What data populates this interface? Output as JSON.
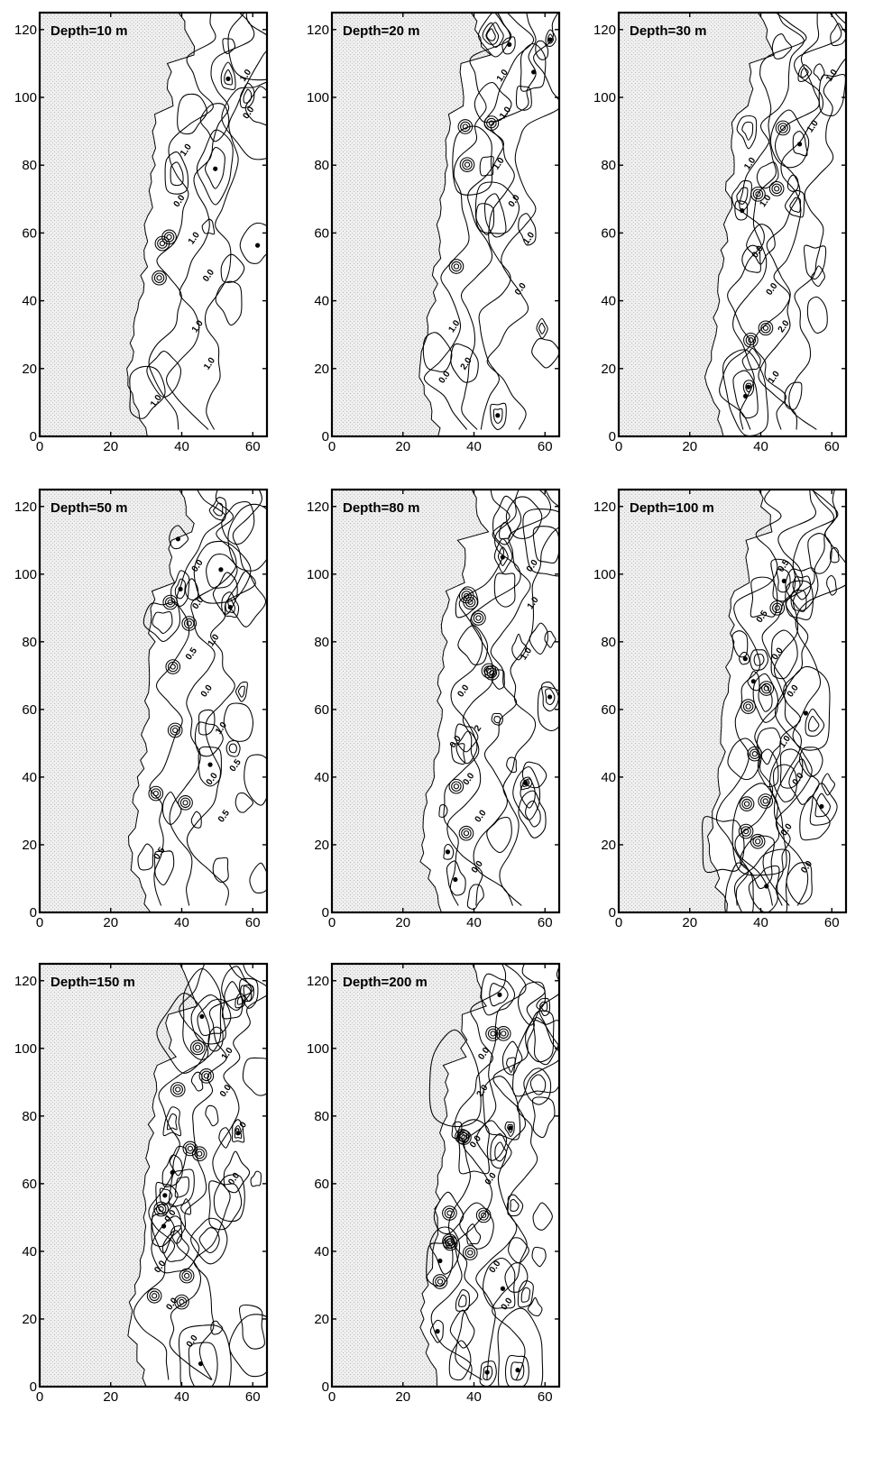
{
  "chart_data": [
    {
      "type": "contour",
      "title": "Depth=10 m",
      "xlim": [
        0,
        64
      ],
      "ylim": [
        0,
        125
      ],
      "xticks": [
        0,
        20,
        40,
        60
      ],
      "yticks": [
        0,
        20,
        40,
        60,
        80,
        100,
        120
      ],
      "contour_labels": [
        "1.0",
        "0.0",
        "1.0",
        "1.0",
        "1.0",
        "0.0",
        "1.0",
        "0.0",
        "1.0"
      ]
    },
    {
      "type": "contour",
      "title": "Depth=20 m",
      "xlim": [
        0,
        64
      ],
      "ylim": [
        0,
        125
      ],
      "xticks": [
        0,
        20,
        40,
        60
      ],
      "yticks": [
        0,
        20,
        40,
        60,
        80,
        100,
        120
      ],
      "contour_labels": [
        "2.0",
        "1.0",
        "1.0",
        "1.0",
        "0.0",
        "1.0",
        "0.0",
        "1.0",
        "0.0"
      ]
    },
    {
      "type": "contour",
      "title": "Depth=30 m",
      "xlim": [
        0,
        64
      ],
      "ylim": [
        0,
        125
      ],
      "xticks": [
        0,
        20,
        40,
        60
      ],
      "yticks": [
        0,
        20,
        40,
        60,
        80,
        100,
        120
      ],
      "contour_labels": [
        "2.0",
        "1.0",
        "1.0",
        "0.0",
        "1.0",
        "1.0",
        "0.0",
        "1.0"
      ]
    },
    {
      "type": "contour",
      "title": "Depth=50 m",
      "xlim": [
        0,
        64
      ],
      "ylim": [
        0,
        125
      ],
      "xticks": [
        0,
        20,
        40,
        60
      ],
      "yticks": [
        0,
        20,
        40,
        60,
        80,
        100,
        120
      ],
      "contour_labels": [
        "0.5",
        "1.0",
        "0.5",
        "1.0",
        "0.0",
        "0.5",
        "0.0",
        "0.0",
        "0.0",
        "0.5"
      ]
    },
    {
      "type": "contour",
      "title": "Depth=80 m",
      "xlim": [
        0,
        64
      ],
      "ylim": [
        0,
        125
      ],
      "xticks": [
        0,
        20,
        40,
        60
      ],
      "yticks": [
        0,
        20,
        40,
        60,
        80,
        100,
        120
      ],
      "contour_labels": [
        "2",
        "1.0",
        "0.0",
        "0.0",
        "0.0",
        "0.0",
        "1.0",
        "0.0",
        "0.0"
      ]
    },
    {
      "type": "contour",
      "title": "Depth=100 m",
      "xlim": [
        0,
        64
      ],
      "ylim": [
        0,
        125
      ],
      "xticks": [
        0,
        20,
        40,
        60
      ],
      "yticks": [
        0,
        20,
        40,
        60,
        80,
        100,
        120
      ],
      "contour_labels": [
        "0.0",
        "0.5",
        "0.0",
        "0.0",
        "0.0",
        "1.0",
        "0.5",
        "0.0"
      ]
    },
    {
      "type": "contour",
      "title": "Depth=150 m",
      "xlim": [
        0,
        64
      ],
      "ylim": [
        0,
        125
      ],
      "xticks": [
        0,
        20,
        40,
        60
      ],
      "yticks": [
        0,
        20,
        40,
        60,
        80,
        100,
        120
      ],
      "contour_labels": [
        "2.0",
        "0.0",
        "0.0",
        "0.0",
        "0.0",
        "0.0",
        "1.0",
        "0.0"
      ]
    },
    {
      "type": "contour",
      "title": "Depth=200 m",
      "xlim": [
        0,
        64
      ],
      "ylim": [
        0,
        125
      ],
      "xticks": [
        0,
        20,
        40,
        60
      ],
      "yticks": [
        0,
        20,
        40,
        60,
        80,
        100,
        120
      ],
      "contour_labels": [
        "2.0",
        "0.0",
        "0.0",
        "0.0",
        "0.0",
        "0.0"
      ]
    }
  ]
}
